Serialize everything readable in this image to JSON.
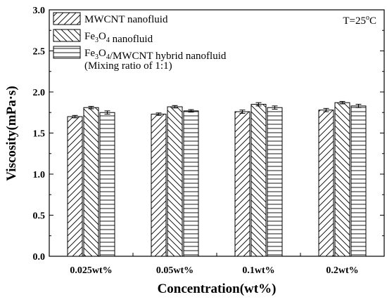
{
  "chart_data": {
    "type": "bar",
    "title": "",
    "xlabel": "Concentration(wt%)",
    "ylabel": "Viscosity(mPa·s)",
    "ylim": [
      0,
      3.0
    ],
    "yticks": [
      "0.0",
      "0.5",
      "1.0",
      "1.5",
      "2.0",
      "2.5",
      "3.0"
    ],
    "categories": [
      "0.025wt%",
      "0.05wt%",
      "0.1wt%",
      "0.2wt%"
    ],
    "series": [
      {
        "name": "MWCNT nanofluid",
        "pattern": "diagonal-right",
        "values": [
          1.7,
          1.73,
          1.76,
          1.78
        ],
        "errors": [
          0.015,
          0.015,
          0.02,
          0.02
        ]
      },
      {
        "name": "Fe3O4 nanofluid",
        "pattern": "diagonal-left",
        "values": [
          1.81,
          1.82,
          1.85,
          1.87
        ],
        "errors": [
          0.015,
          0.015,
          0.02,
          0.015
        ]
      },
      {
        "name": "Fe3O4/MWCNT hybrid nanofluid",
        "pattern": "horizontal",
        "values": [
          1.75,
          1.77,
          1.81,
          1.83
        ],
        "errors": [
          0.02,
          0.015,
          0.02,
          0.02
        ]
      }
    ],
    "legend_note": "(Mixing ratio of 1:1)",
    "annotation": "T=25°C",
    "grid": false,
    "legend_position": "top-left"
  }
}
